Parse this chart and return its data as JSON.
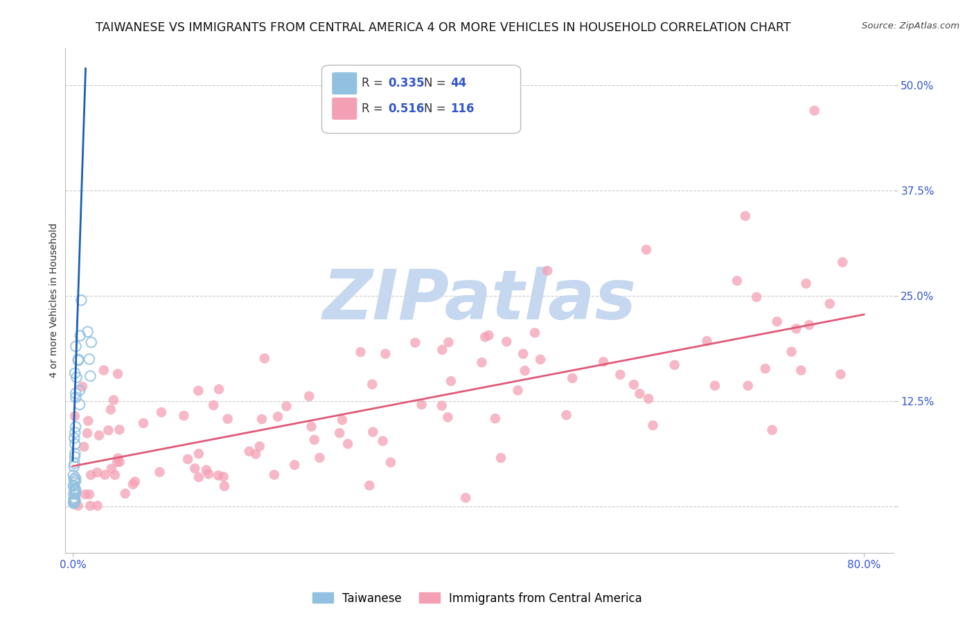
{
  "title": "TAIWANESE VS IMMIGRANTS FROM CENTRAL AMERICA 4 OR MORE VEHICLES IN HOUSEHOLD CORRELATION CHART",
  "source": "Source: ZipAtlas.com",
  "ylabel": "4 or more Vehicles in Household",
  "y_ticks": [
    0.0,
    0.125,
    0.25,
    0.375,
    0.5
  ],
  "y_tick_labels": [
    "",
    "12.5%",
    "25.0%",
    "37.5%",
    "50.0%"
  ],
  "x_tick_labels": [
    "0.0%",
    "80.0%"
  ],
  "x_tick_vals": [
    0.0,
    0.8
  ],
  "x_min": -0.008,
  "x_max": 0.83,
  "y_min": -0.055,
  "y_max": 0.545,
  "taiwanese_color": "#92c0e0",
  "central_america_color": "#f4a0b4",
  "taiwanese_line_color": "#1a5fb4",
  "central_america_line_color": "#e05878",
  "watermark_text": "ZIPatlas",
  "watermark_color": "#c5d8f0",
  "background_color": "#ffffff",
  "grid_color": "#cccccc",
  "title_fontsize": 12.5,
  "axis_label_fontsize": 10,
  "tick_label_color": "#3355cc",
  "tick_label_fontsize": 11,
  "legend_R1": "0.335",
  "legend_N1": "44",
  "legend_R2": "0.516",
  "legend_N2": "116",
  "bottom_label1": "Taiwanese",
  "bottom_label2": "Immigrants from Central America",
  "ca_line_x0": 0.0,
  "ca_line_x1": 0.8,
  "ca_line_y0": 0.048,
  "ca_line_y1": 0.228,
  "tw_line_x0": 0.0,
  "tw_line_x1": 0.013,
  "tw_line_y0": 0.055,
  "tw_line_y1": 0.52,
  "scatter_alpha": 0.75,
  "scatter_size": 110
}
